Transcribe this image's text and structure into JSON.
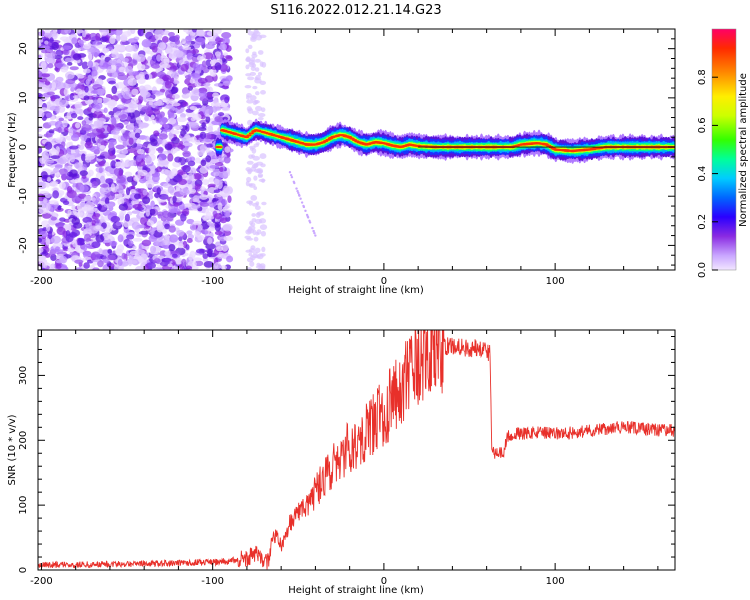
{
  "figure_title": "S116.2022.012.21.14.G23",
  "chart_data": [
    {
      "type": "heatmap",
      "xlabel": "Height of straight line (km)",
      "ylabel": "Frequency (Hz)",
      "xlim": [
        -202,
        170
      ],
      "ylim": [
        -25,
        24
      ],
      "x_ticks": [
        -200,
        -100,
        0,
        100
      ],
      "y_ticks": [
        -20,
        -10,
        0,
        10,
        20
      ],
      "colorbar": {
        "label": "Normalized spectral amplitude",
        "range": [
          0,
          1
        ],
        "ticks": [
          "0.0",
          "0.2",
          "0.4",
          "0.6",
          "0.8"
        ],
        "colors": [
          "#f2e6ff",
          "#c9a6ff",
          "#8a2be2",
          "#2a00ff",
          "#0066ff",
          "#00ccff",
          "#00ff66",
          "#66ff00",
          "#ffff00",
          "#ff9900",
          "#ff3300",
          "#ff0066"
        ]
      },
      "noise_region_km": [
        -202,
        -90
      ],
      "trace_centerline": [
        {
          "x": -95,
          "y": 3.5
        },
        {
          "x": -90,
          "y": 3.0
        },
        {
          "x": -85,
          "y": 2.5
        },
        {
          "x": -80,
          "y": 2.0
        },
        {
          "x": -75,
          "y": 3.5
        },
        {
          "x": -70,
          "y": 3.0
        },
        {
          "x": -65,
          "y": 2.5
        },
        {
          "x": -60,
          "y": 2.0
        },
        {
          "x": -55,
          "y": 1.5
        },
        {
          "x": -50,
          "y": 1.0
        },
        {
          "x": -45,
          "y": 0.5
        },
        {
          "x": -40,
          "y": 0.5
        },
        {
          "x": -35,
          "y": 1.0
        },
        {
          "x": -30,
          "y": 2.0
        },
        {
          "x": -25,
          "y": 2.5
        },
        {
          "x": -20,
          "y": 2.0
        },
        {
          "x": -15,
          "y": 1.0
        },
        {
          "x": -10,
          "y": 0.5
        },
        {
          "x": -5,
          "y": 1.0
        },
        {
          "x": 0,
          "y": 0.8
        },
        {
          "x": 5,
          "y": 0.3
        },
        {
          "x": 10,
          "y": 0.0
        },
        {
          "x": 15,
          "y": 0.5
        },
        {
          "x": 20,
          "y": 0.2
        },
        {
          "x": 30,
          "y": 0.0
        },
        {
          "x": 60,
          "y": 0.0
        },
        {
          "x": 75,
          "y": 0.0
        },
        {
          "x": 80,
          "y": 0.5
        },
        {
          "x": 90,
          "y": 0.8
        },
        {
          "x": 95,
          "y": 0.5
        },
        {
          "x": 100,
          "y": -0.5
        },
        {
          "x": 110,
          "y": -0.8
        },
        {
          "x": 120,
          "y": -0.5
        },
        {
          "x": 130,
          "y": 0.0
        },
        {
          "x": 170,
          "y": 0.0
        }
      ]
    },
    {
      "type": "line",
      "xlabel": "Height of straight line (km)",
      "ylabel": "SNR (10 * v/v)",
      "xlim": [
        -202,
        170
      ],
      "ylim": [
        0,
        370
      ],
      "x_ticks": [
        -200,
        -100,
        0,
        100
      ],
      "y_ticks": [
        0,
        100,
        200,
        300
      ],
      "series": [
        {
          "color": "#e8302a",
          "x": [
            -202,
            -180,
            -160,
            -140,
            -120,
            -100,
            -90,
            -82,
            -78,
            -75,
            -72,
            -68,
            -64,
            -60,
            -55,
            -50,
            -45,
            -40,
            -35,
            -30,
            -25,
            -20,
            -15,
            -10,
            -5,
            0,
            5,
            10,
            15,
            20,
            25,
            30,
            35,
            40,
            45,
            50,
            55,
            60,
            61,
            62,
            63,
            65,
            70,
            72,
            75,
            80,
            90,
            100,
            110,
            120,
            130,
            140,
            150,
            160,
            170
          ],
          "y": [
            8,
            8,
            9,
            10,
            11,
            12,
            14,
            18,
            20,
            25,
            20,
            10,
            55,
            35,
            70,
            90,
            100,
            120,
            140,
            160,
            175,
            190,
            200,
            215,
            230,
            245,
            260,
            280,
            300,
            315,
            325,
            340,
            345,
            345,
            345,
            340,
            345,
            340,
            335,
            335,
            185,
            180,
            180,
            205,
            210,
            210,
            212,
            210,
            212,
            215,
            218,
            220,
            218,
            216,
            215
          ]
        }
      ]
    }
  ]
}
